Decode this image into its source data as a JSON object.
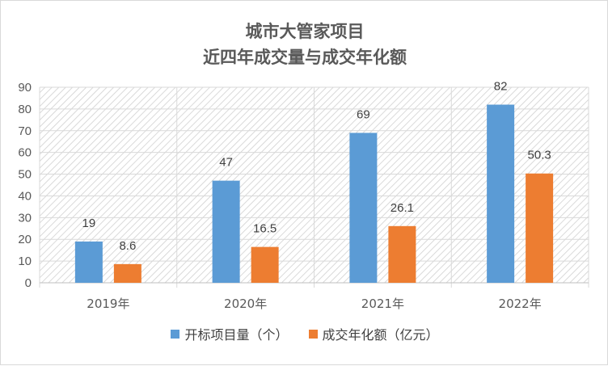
{
  "chart_data": {
    "type": "bar",
    "title_lines": [
      "城市大管家项目",
      "近四年成交量与成交年化额"
    ],
    "categories": [
      "2019年",
      "2020年",
      "2021年",
      "2022年"
    ],
    "series": [
      {
        "name": "开标项目量（个）",
        "values": [
          19,
          47,
          69,
          82
        ],
        "labels": [
          "19",
          "47",
          "69",
          "82"
        ],
        "color": "#5b9bd5"
      },
      {
        "name": "成交年化额（亿元）",
        "values": [
          8.6,
          16.5,
          26.1,
          50.3
        ],
        "labels": [
          "8.6",
          "16.5",
          "26.1",
          "50.3"
        ],
        "color": "#ed7d31"
      }
    ],
    "ylim": [
      0,
      90
    ],
    "yticks": [
      0,
      10,
      20,
      30,
      40,
      50,
      60,
      70,
      80,
      90
    ],
    "grid": true,
    "plot_background": "hatched",
    "legend_position": "bottom"
  }
}
